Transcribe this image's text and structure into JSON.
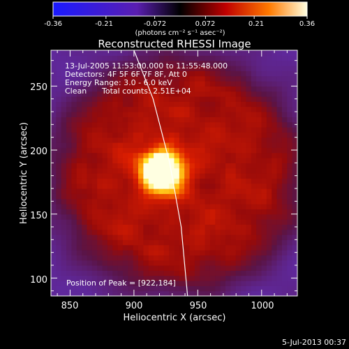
{
  "chart_data": {
    "type": "heatmap",
    "title": "Reconstructed RHESSI Image",
    "xlabel": "Heliocentric X (arcsec)",
    "ylabel": "Heliocentric Y (arcsec)",
    "xlim": [
      835,
      1028
    ],
    "ylim": [
      86,
      278
    ],
    "xticks": [
      850,
      900,
      950,
      1000
    ],
    "yticks": [
      100,
      150,
      200,
      250
    ],
    "colorbar": {
      "ticks": [
        "-0.36",
        "-0.21",
        "-0.072",
        "0.072",
        "0.21",
        "0.36"
      ],
      "range": [
        -0.36,
        0.36
      ],
      "unit_label": "(photons cm⁻² s⁻¹ asec⁻²)"
    },
    "annotations": {
      "time": "13-Jul-2005 11:53:00.000 to 11:55:48.000",
      "detectors": "Detectors: 4F 5F 6F 7F 8F, Att 0",
      "energy": "Energy Range: 3.0 - 6.0 keV",
      "clean": "Clean",
      "counts": "Total counts: 2.51E+04",
      "peak": "Position of Peak = [922,184]"
    },
    "peak": {
      "x": 922,
      "y": 184
    },
    "limb_points": [
      [
        900,
        278
      ],
      [
        915,
        240
      ],
      [
        928,
        190
      ],
      [
        937,
        140
      ],
      [
        942,
        86
      ]
    ]
  },
  "footer": {
    "timestamp": "5-Jul-2013 00:37"
  },
  "colors": {
    "background": "#000000",
    "axes": "#ffffff"
  }
}
